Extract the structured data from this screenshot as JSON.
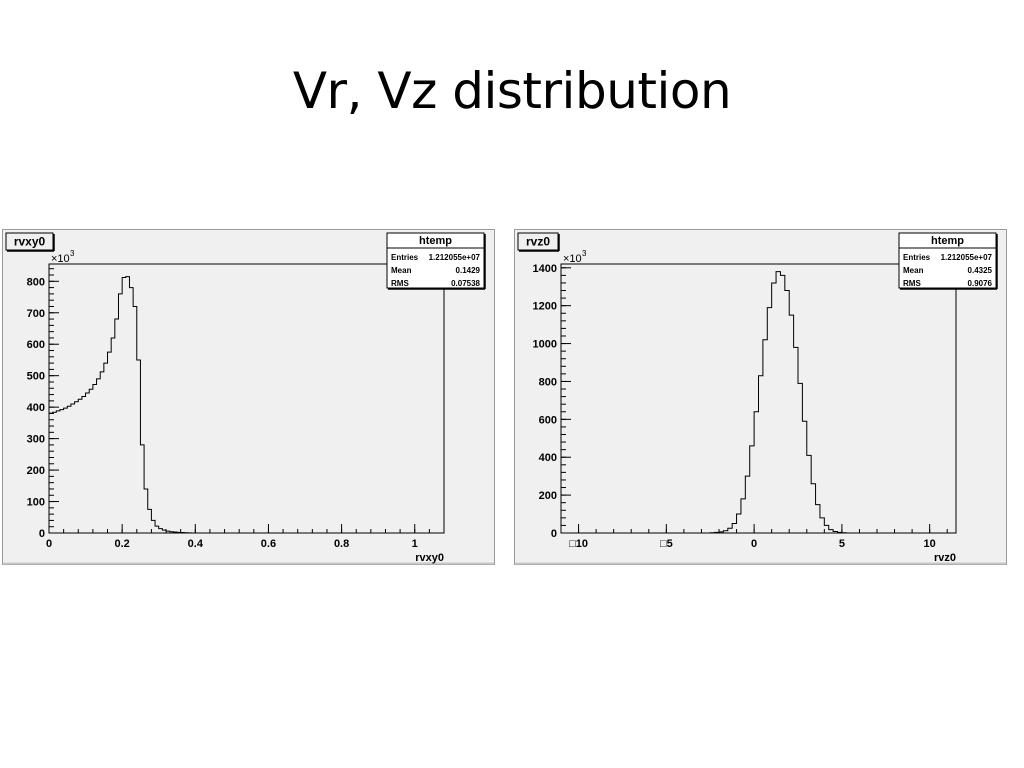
{
  "slide": {
    "title": "Vr, Vz distribution"
  },
  "chart_data": [
    {
      "type": "histogram",
      "name": "rvxy0",
      "title": "rvxy0",
      "xlabel": "rvxy0",
      "ylabel": "",
      "y_multiplier": "×10",
      "y_multiplier_exp": "3",
      "xlim": [
        0,
        1.08
      ],
      "ylim": [
        0,
        855
      ],
      "xticks": [
        0,
        0.2,
        0.4,
        0.6,
        0.8,
        1
      ],
      "xtick_labels": [
        "0",
        "0.2",
        "0.4",
        "0.6",
        "0.8",
        "1"
      ],
      "yticks": [
        0,
        100,
        200,
        300,
        400,
        500,
        600,
        700,
        800
      ],
      "ytick_labels": [
        "0",
        "100",
        "200",
        "300",
        "400",
        "500",
        "600",
        "700",
        "800"
      ],
      "bins": {
        "start": 0,
        "width": 0.01
      },
      "values": [
        381,
        384,
        388,
        392,
        397,
        403,
        410,
        417,
        425,
        434,
        445,
        457,
        472,
        490,
        512,
        540,
        575,
        620,
        680,
        760,
        812,
        815,
        780,
        720,
        550,
        280,
        140,
        75,
        40,
        22,
        14,
        9,
        6,
        4,
        3,
        2,
        1.5,
        1,
        0.5,
        0
      ],
      "stats": {
        "title": "htemp",
        "rows": [
          {
            "label": "Entries",
            "value": "1.212055e+07"
          },
          {
            "label": "Mean",
            "value": "0.1429"
          },
          {
            "label": "RMS",
            "value": "0.07538"
          }
        ]
      }
    },
    {
      "type": "histogram",
      "name": "rvz0",
      "title": "rvz0",
      "xlabel": "rvz0",
      "ylabel": "",
      "y_multiplier": "×10",
      "y_multiplier_exp": "3",
      "xlim": [
        -11,
        11.5
      ],
      "ylim": [
        0,
        1420
      ],
      "xticks": [
        -10,
        -5,
        0,
        5,
        10
      ],
      "xtick_labels": [
        "□10",
        "□5",
        "0",
        "5",
        "10"
      ],
      "yticks": [
        0,
        200,
        400,
        600,
        800,
        1000,
        1200,
        1400
      ],
      "ytick_labels": [
        "0",
        "200",
        "400",
        "600",
        "800",
        "1000",
        "1200",
        "1400"
      ],
      "bins": {
        "start": -2.5,
        "width": 0.25
      },
      "values": [
        1,
        3,
        6,
        12,
        25,
        50,
        100,
        180,
        300,
        460,
        640,
        830,
        1020,
        1190,
        1320,
        1380,
        1360,
        1280,
        1150,
        980,
        790,
        590,
        410,
        260,
        150,
        80,
        40,
        18,
        8,
        3,
        1,
        0
      ],
      "stats": {
        "title": "htemp",
        "rows": [
          {
            "label": "Entries",
            "value": "1.212055e+07"
          },
          {
            "label": "Mean",
            "value": "0.4325"
          },
          {
            "label": "RMS",
            "value": "0.9076"
          }
        ]
      }
    }
  ]
}
